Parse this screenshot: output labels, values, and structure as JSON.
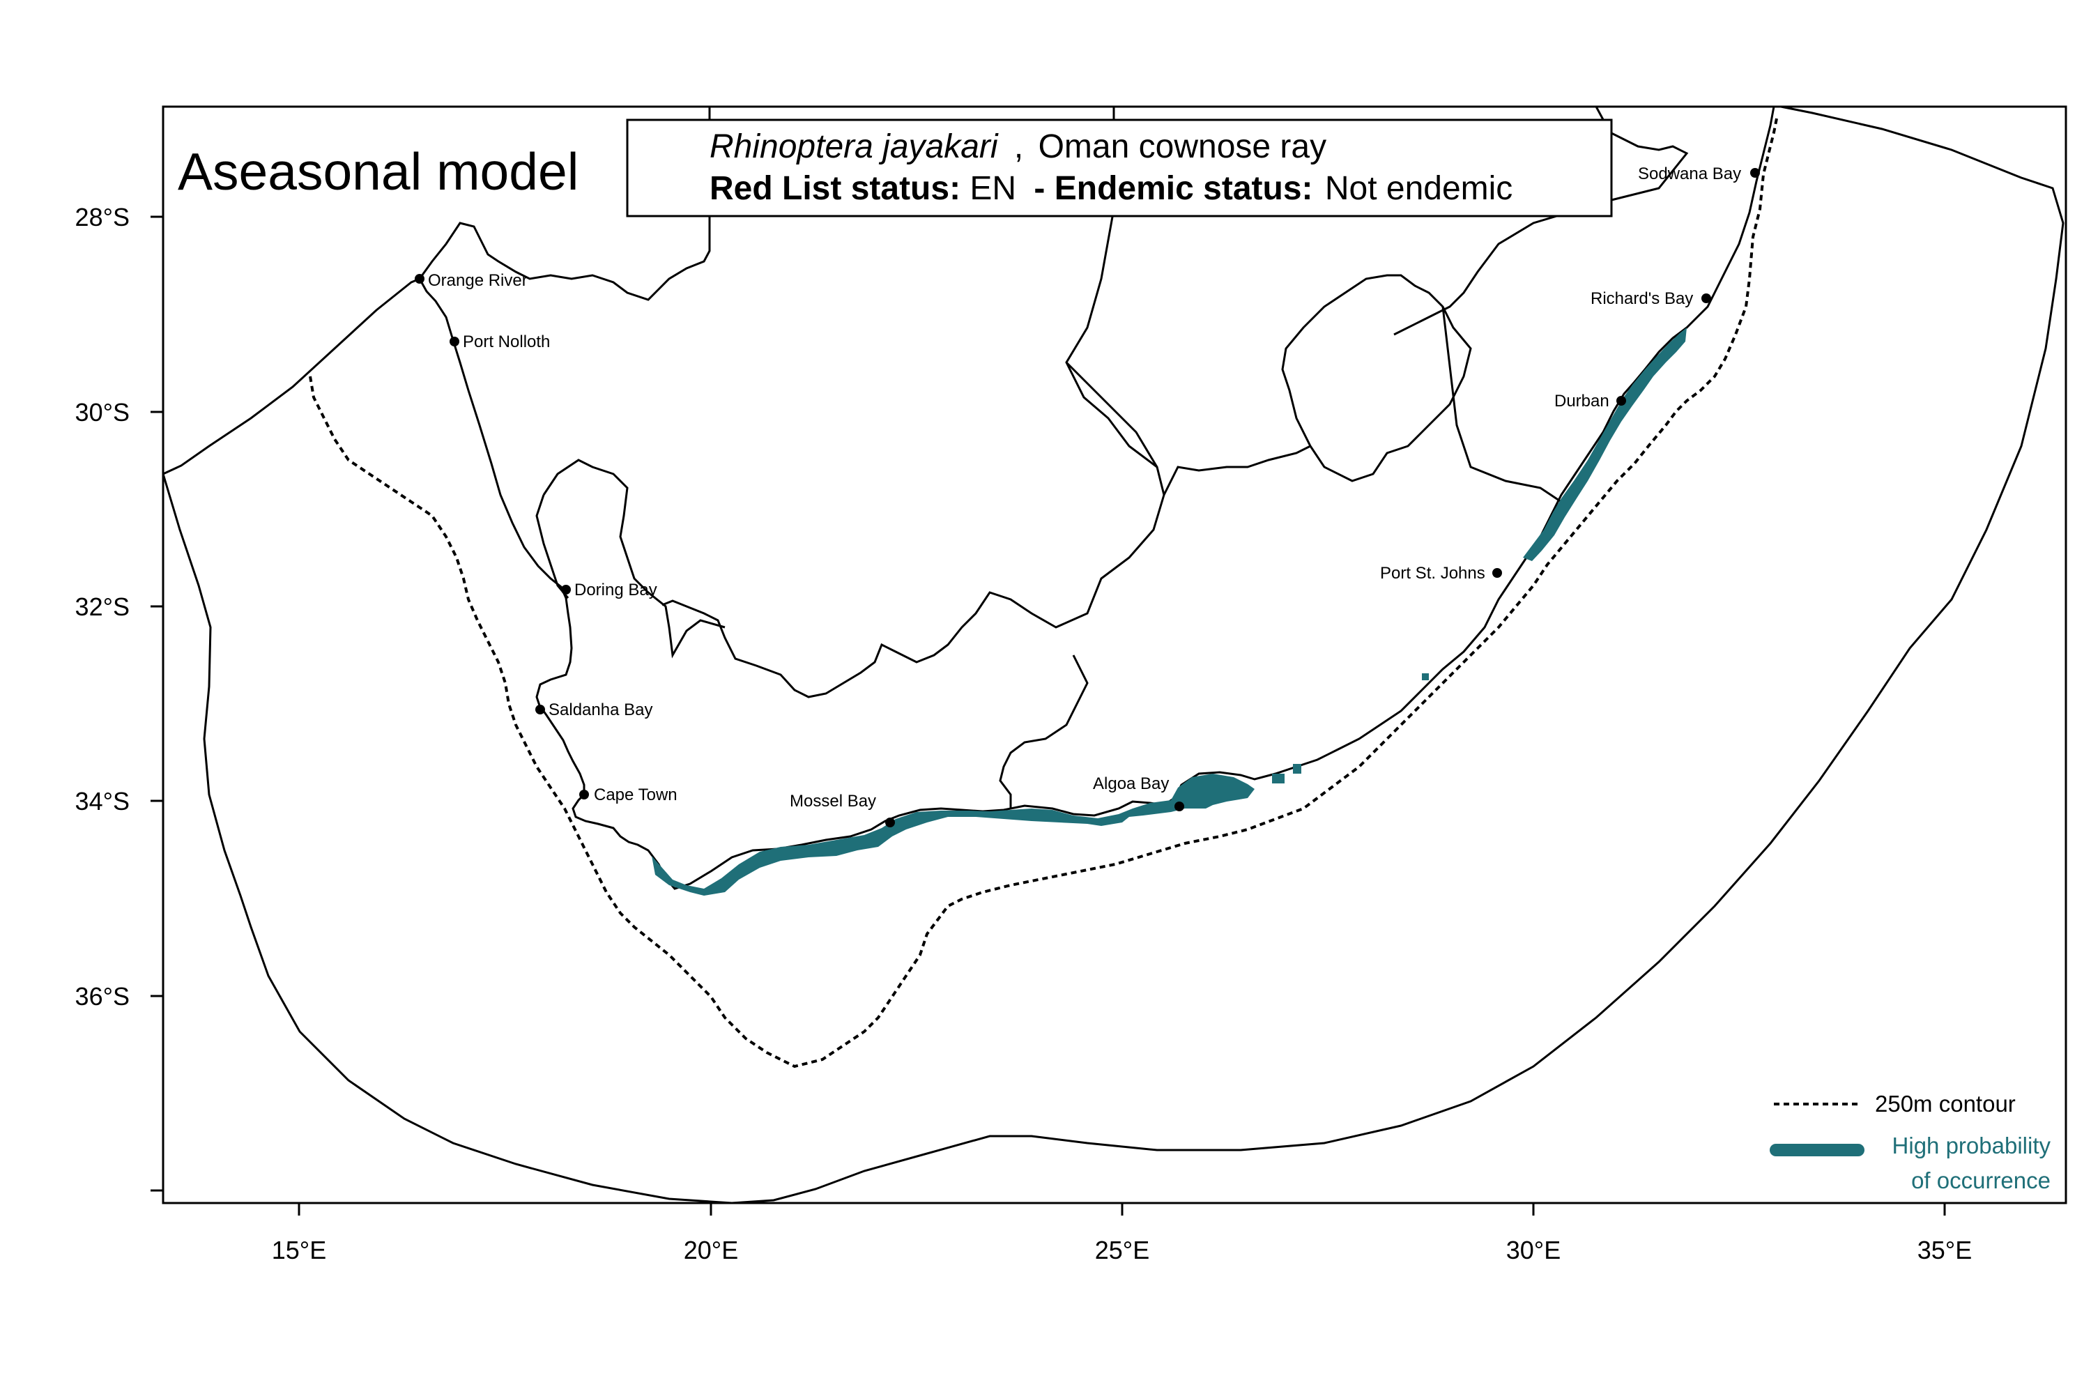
{
  "map": {
    "model_title": "Aseasonal model",
    "species": {
      "scientific_name": "Rhinoptera jayakari",
      "separator": ",",
      "common_name": "Oman cownose ray",
      "red_list_label": "Red List status:",
      "red_list_value": "EN",
      "endemic_label": "- Endemic status:",
      "endemic_value": "Not endemic"
    },
    "axes": {
      "longitude_ticks": [
        "15°E",
        "20°E",
        "25°E",
        "30°E",
        "35°E"
      ],
      "latitude_ticks": [
        "28°S",
        "30°S",
        "32°S",
        "34°S",
        "36°S"
      ]
    },
    "places": [
      {
        "name": "Orange River"
      },
      {
        "name": "Port Nolloth"
      },
      {
        "name": "Doring Bay"
      },
      {
        "name": "Saldanha Bay"
      },
      {
        "name": "Cape Town"
      },
      {
        "name": "Mossel Bay"
      },
      {
        "name": "Algoa Bay"
      },
      {
        "name": "Port St. Johns"
      },
      {
        "name": "Durban"
      },
      {
        "name": "Richard's Bay"
      },
      {
        "name": "Sodwana Bay"
      }
    ],
    "legend": {
      "contour_label": "250m contour",
      "occurrence_line1": "High probability",
      "occurrence_line2": "of occurrence"
    },
    "colors": {
      "occurrence": "#1f6f78",
      "line": "#000000"
    }
  }
}
